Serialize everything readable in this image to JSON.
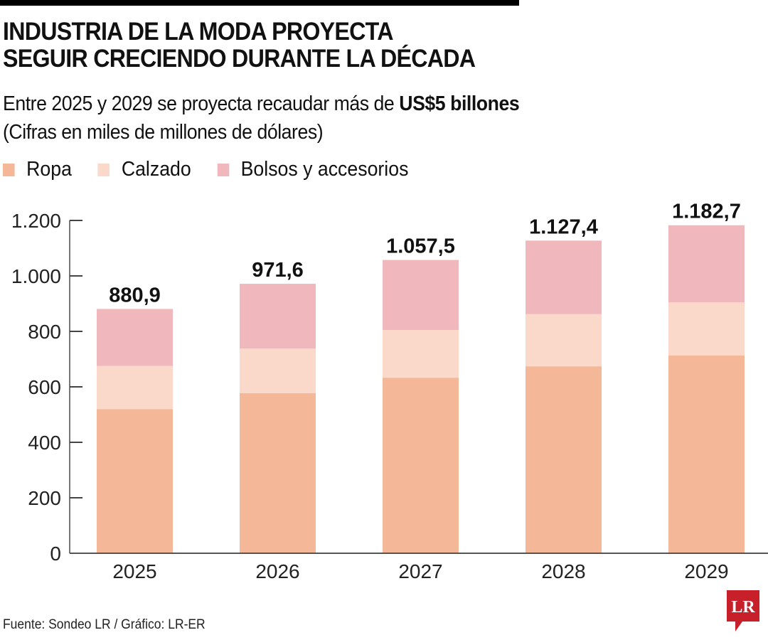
{
  "header": {
    "title_line1": "INDUSTRIA DE LA MODA PROYECTA",
    "title_line2": "SEGUIR CRECIENDO DURANTE LA DÉCADA",
    "subtitle_prefix": "Entre 2025 y 2029 se proyecta recaudar más de ",
    "subtitle_bold": "US$5 billones",
    "units_note": "(Cifras en miles de millones de dólares)"
  },
  "footer": {
    "source": "Fuente: Sondeo LR / Gráfico: LR-ER",
    "logo_text": "LR",
    "logo_color": "#c8202a"
  },
  "chart_data": {
    "type": "bar",
    "stacked": true,
    "title": "INDUSTRIA DE LA MODA PROYECTA SEGUIR CRECIENDO DURANTE LA DÉCADA",
    "xlabel": "",
    "ylabel": "",
    "categories": [
      "2025",
      "2026",
      "2027",
      "2028",
      "2029"
    ],
    "series": [
      {
        "name": "Ropa",
        "color": "#f4b797",
        "values": [
          520,
          577,
          633,
          674,
          713
        ]
      },
      {
        "name": "Calzado",
        "color": "#fbd9ca",
        "values": [
          155,
          161,
          172,
          188,
          192
        ]
      },
      {
        "name": "Bolsos y accesorios",
        "color": "#f0b8bc",
        "values": [
          205.9,
          233.6,
          252.5,
          265.4,
          277.7
        ]
      }
    ],
    "totals": [
      880.9,
      971.6,
      1057.5,
      1127.4,
      1182.7
    ],
    "total_labels": [
      "880,9",
      "971,6",
      "1.057,5",
      "1.127,4",
      "1.182,7"
    ],
    "ylim": [
      0,
      1200
    ],
    "yticks": [
      0,
      200,
      400,
      600,
      800,
      1000,
      1200
    ],
    "ytick_labels": [
      "0",
      "200",
      "400",
      "600",
      "800",
      "1.000",
      "1.200"
    ],
    "grid": false,
    "legend": "top-left"
  }
}
